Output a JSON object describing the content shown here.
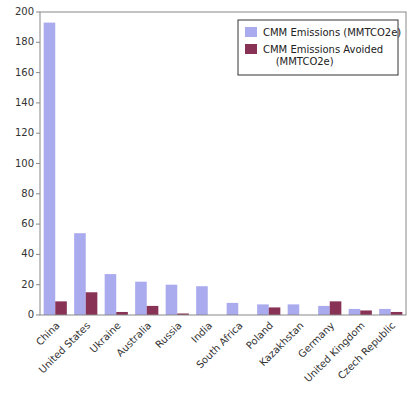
{
  "chart_data": {
    "type": "bar",
    "categories": [
      "China",
      "United States",
      "Ukraine",
      "Australia",
      "Russia",
      "India",
      "South Africa",
      "Poland",
      "Kazakhstan",
      "Germany",
      "United Kingdom",
      "Czech Republic"
    ],
    "series": [
      {
        "name": "CMM Emissions (MMTCO2e)",
        "color": "#aaaaee",
        "values": [
          193,
          54,
          27,
          22,
          20,
          19,
          8,
          7,
          7,
          6,
          4,
          4
        ]
      },
      {
        "name": "CMM Emissions Avoided\n    (MMTCO2e)",
        "color": "#883355",
        "values": [
          9,
          15,
          2,
          6,
          1,
          0,
          0,
          5,
          0,
          9,
          3,
          2
        ]
      }
    ],
    "ylim": [
      0,
      200
    ],
    "yticks": [
      0,
      20,
      40,
      60,
      80,
      100,
      120,
      140,
      160,
      180,
      200
    ],
    "grid": false,
    "legend": "upper right"
  }
}
